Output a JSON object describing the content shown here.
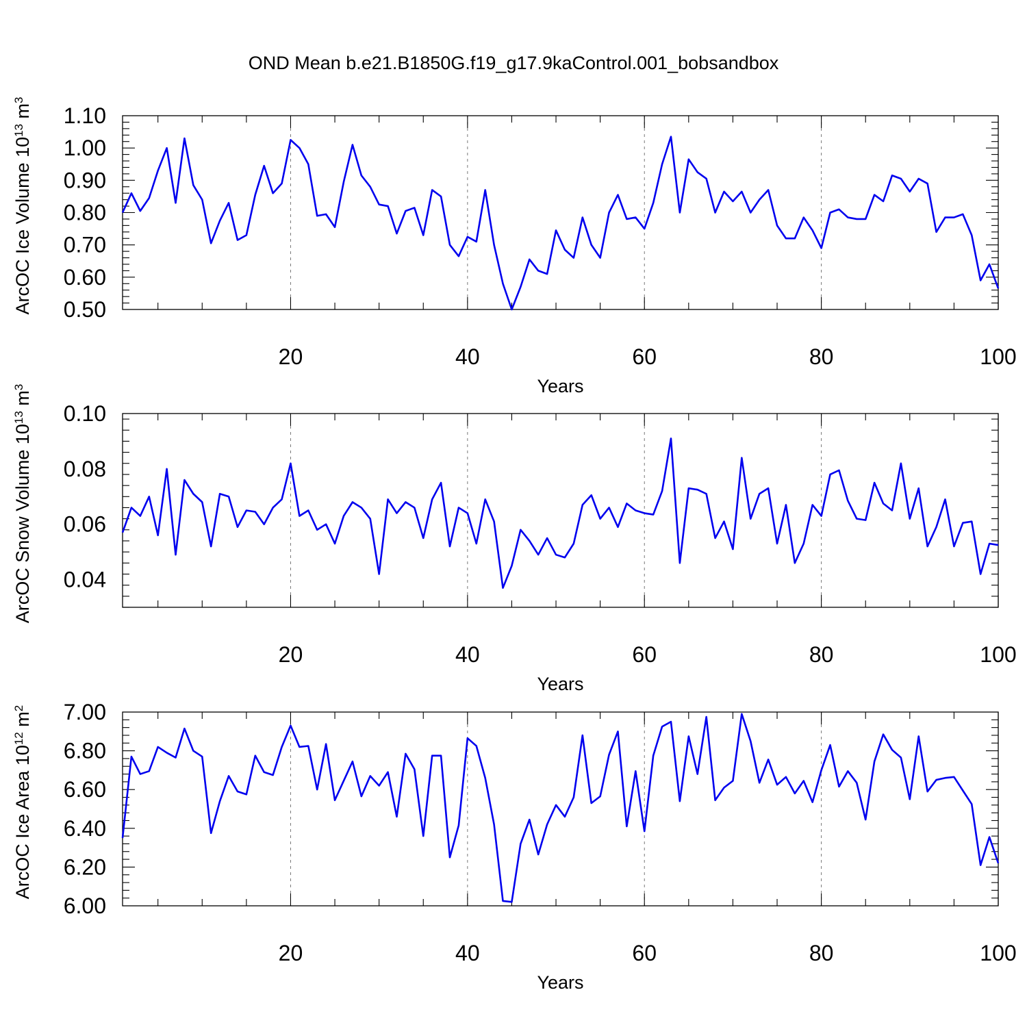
{
  "title": "OND Mean b.e21.B1850G.f19_g17.9kaControl.001_bobsandbox",
  "line_color": "#0000ee",
  "chart_data": [
    {
      "type": "line",
      "ylabel": {
        "main": "ArcOC Ice Volume 10",
        "exp": "13",
        "mid": " m",
        "unit_exp": "3"
      },
      "xlabel": "Years",
      "xlim": [
        1,
        100
      ],
      "ylim": [
        0.5,
        1.1
      ],
      "xticks": [
        20,
        40,
        60,
        80,
        100
      ],
      "xtick_labels": [
        "20",
        "40",
        "60",
        "80",
        "100"
      ],
      "yticks": [
        0.5,
        0.6,
        0.7,
        0.8,
        0.9,
        1.0,
        1.1
      ],
      "ytick_labels": [
        "0.50",
        "0.60",
        "0.70",
        "0.80",
        "0.90",
        "1.00",
        "1.10"
      ],
      "grid_x": [
        20,
        40,
        60,
        80
      ],
      "series": [
        {
          "x_start": 1,
          "values": [
            0.8,
            0.86,
            0.805,
            0.845,
            0.93,
            1.0,
            0.83,
            1.03,
            0.885,
            0.84,
            0.705,
            0.775,
            0.83,
            0.715,
            0.73,
            0.855,
            0.945,
            0.86,
            0.89,
            1.025,
            1.0,
            0.95,
            0.79,
            0.795,
            0.755,
            0.895,
            1.01,
            0.915,
            0.88,
            0.825,
            0.82,
            0.735,
            0.805,
            0.815,
            0.73,
            0.87,
            0.85,
            0.7,
            0.665,
            0.725,
            0.71,
            0.87,
            0.7,
            0.58,
            0.5,
            0.57,
            0.655,
            0.62,
            0.61,
            0.745,
            0.685,
            0.66,
            0.785,
            0.7,
            0.66,
            0.8,
            0.855,
            0.78,
            0.785,
            0.75,
            0.83,
            0.95,
            1.035,
            0.8,
            0.965,
            0.925,
            0.905,
            0.8,
            0.865,
            0.835,
            0.865,
            0.8,
            0.84,
            0.87,
            0.76,
            0.72,
            0.72,
            0.785,
            0.745,
            0.69,
            0.8,
            0.81,
            0.785,
            0.78,
            0.78,
            0.855,
            0.835,
            0.915,
            0.905,
            0.865,
            0.905,
            0.89,
            0.74,
            0.785,
            0.785,
            0.795,
            0.73,
            0.59,
            0.64,
            0.565
          ]
        }
      ]
    },
    {
      "type": "line",
      "ylabel": {
        "main": "ArcOC Snow Volume 10",
        "exp": "13",
        "mid": " m",
        "unit_exp": "3"
      },
      "xlabel": "Years",
      "xlim": [
        1,
        100
      ],
      "ylim": [
        0.03,
        0.1
      ],
      "xticks": [
        20,
        40,
        60,
        80,
        100
      ],
      "xtick_labels": [
        "20",
        "40",
        "60",
        "80",
        "100"
      ],
      "yticks": [
        0.04,
        0.06,
        0.08,
        0.1
      ],
      "ytick_labels": [
        "0.04",
        "0.06",
        "0.08",
        "0.10"
      ],
      "grid_x": [
        20,
        40,
        60,
        80
      ],
      "series": [
        {
          "x_start": 1,
          "values": [
            0.057,
            0.066,
            0.063,
            0.07,
            0.056,
            0.08,
            0.049,
            0.076,
            0.071,
            0.068,
            0.052,
            0.071,
            0.07,
            0.059,
            0.065,
            0.0645,
            0.06,
            0.066,
            0.069,
            0.082,
            0.063,
            0.065,
            0.058,
            0.06,
            0.053,
            0.063,
            0.068,
            0.066,
            0.062,
            0.042,
            0.069,
            0.064,
            0.068,
            0.066,
            0.055,
            0.069,
            0.075,
            0.052,
            0.066,
            0.064,
            0.053,
            0.069,
            0.061,
            0.037,
            0.045,
            0.058,
            0.054,
            0.049,
            0.055,
            0.049,
            0.048,
            0.053,
            0.067,
            0.0705,
            0.062,
            0.066,
            0.059,
            0.0675,
            0.065,
            0.064,
            0.0635,
            0.072,
            0.091,
            0.046,
            0.073,
            0.0725,
            0.071,
            0.055,
            0.061,
            0.051,
            0.084,
            0.062,
            0.071,
            0.073,
            0.053,
            0.067,
            0.046,
            0.053,
            0.067,
            0.063,
            0.078,
            0.0795,
            0.0685,
            0.062,
            0.0615,
            0.075,
            0.0675,
            0.065,
            0.082,
            0.062,
            0.073,
            0.052,
            0.059,
            0.069,
            0.052,
            0.0605,
            0.061,
            0.042,
            0.053,
            0.0525
          ]
        }
      ]
    },
    {
      "type": "line",
      "ylabel": {
        "main": "ArcOC Ice Area 10",
        "exp": "12",
        "mid": " m",
        "unit_exp": "2"
      },
      "xlabel": "Years",
      "xlim": [
        1,
        100
      ],
      "ylim": [
        6.0,
        7.0
      ],
      "xticks": [
        20,
        40,
        60,
        80,
        100
      ],
      "xtick_labels": [
        "20",
        "40",
        "60",
        "80",
        "100"
      ],
      "yticks": [
        6.0,
        6.2,
        6.4,
        6.6,
        6.8,
        7.0
      ],
      "ytick_labels": [
        "6.00",
        "6.20",
        "6.40",
        "6.60",
        "6.80",
        "7.00"
      ],
      "grid_x": [
        20,
        40,
        60,
        80
      ],
      "series": [
        {
          "x_start": 1,
          "values": [
            6.35,
            6.77,
            6.68,
            6.695,
            6.82,
            6.79,
            6.765,
            6.915,
            6.8,
            6.77,
            6.375,
            6.54,
            6.67,
            6.59,
            6.575,
            6.775,
            6.69,
            6.675,
            6.82,
            6.93,
            6.82,
            6.825,
            6.6,
            6.835,
            6.545,
            6.645,
            6.745,
            6.565,
            6.67,
            6.62,
            6.69,
            6.46,
            6.785,
            6.705,
            6.36,
            6.775,
            6.775,
            6.25,
            6.415,
            6.865,
            6.825,
            6.66,
            6.42,
            6.025,
            6.02,
            6.32,
            6.445,
            6.265,
            6.42,
            6.52,
            6.46,
            6.56,
            6.88,
            6.53,
            6.565,
            6.78,
            6.9,
            6.41,
            6.695,
            6.385,
            6.775,
            6.925,
            6.95,
            6.54,
            6.875,
            6.68,
            6.975,
            6.545,
            6.61,
            6.645,
            6.99,
            6.85,
            6.635,
            6.755,
            6.625,
            6.665,
            6.58,
            6.645,
            6.535,
            6.7,
            6.83,
            6.615,
            6.695,
            6.635,
            6.445,
            6.745,
            6.885,
            6.805,
            6.765,
            6.55,
            6.875,
            6.59,
            6.65,
            6.66,
            6.665,
            6.595,
            6.525,
            6.21,
            6.355,
            6.22
          ]
        }
      ]
    }
  ]
}
